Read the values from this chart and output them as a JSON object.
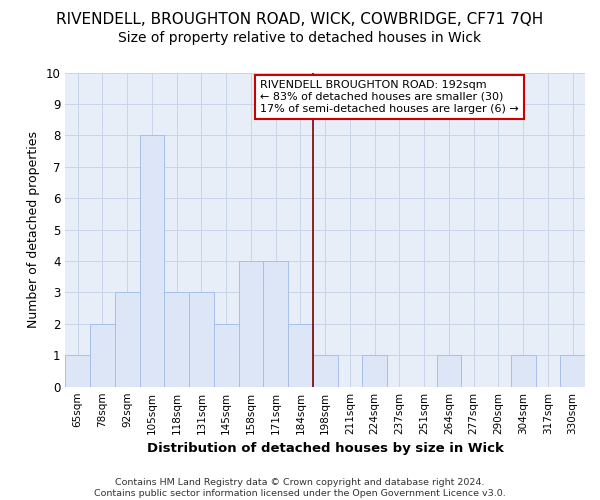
{
  "title": "RIVENDELL, BROUGHTON ROAD, WICK, COWBRIDGE, CF71 7QH",
  "subtitle": "Size of property relative to detached houses in Wick",
  "xlabel": "Distribution of detached houses by size in Wick",
  "ylabel": "Number of detached properties",
  "bin_labels": [
    "65sqm",
    "78sqm",
    "92sqm",
    "105sqm",
    "118sqm",
    "131sqm",
    "145sqm",
    "158sqm",
    "171sqm",
    "184sqm",
    "198sqm",
    "211sqm",
    "224sqm",
    "237sqm",
    "251sqm",
    "264sqm",
    "277sqm",
    "290sqm",
    "304sqm",
    "317sqm",
    "330sqm"
  ],
  "bar_heights": [
    1,
    2,
    3,
    8,
    3,
    3,
    2,
    4,
    4,
    2,
    1,
    0,
    1,
    0,
    0,
    1,
    0,
    0,
    1,
    0,
    1
  ],
  "bar_color": "#dce6f7",
  "bar_edge_color": "#a8c0e8",
  "property_line_index": 9,
  "property_line_color": "#7b0000",
  "annotation_line1": "RIVENDELL BROUGHTON ROAD: 192sqm",
  "annotation_line2": "← 83% of detached houses are smaller (30)",
  "annotation_line3": "17% of semi-detached houses are larger (6) →",
  "annotation_box_facecolor": "#ffffff",
  "annotation_box_edgecolor": "#cc0000",
  "footer_line1": "Contains HM Land Registry data © Crown copyright and database right 2024.",
  "footer_line2": "Contains public sector information licensed under the Open Government Licence v3.0.",
  "ylim_max": 10,
  "bg_color": "#ffffff",
  "plot_bg_color": "#e8eef8",
  "grid_color": "#c8d4e8"
}
